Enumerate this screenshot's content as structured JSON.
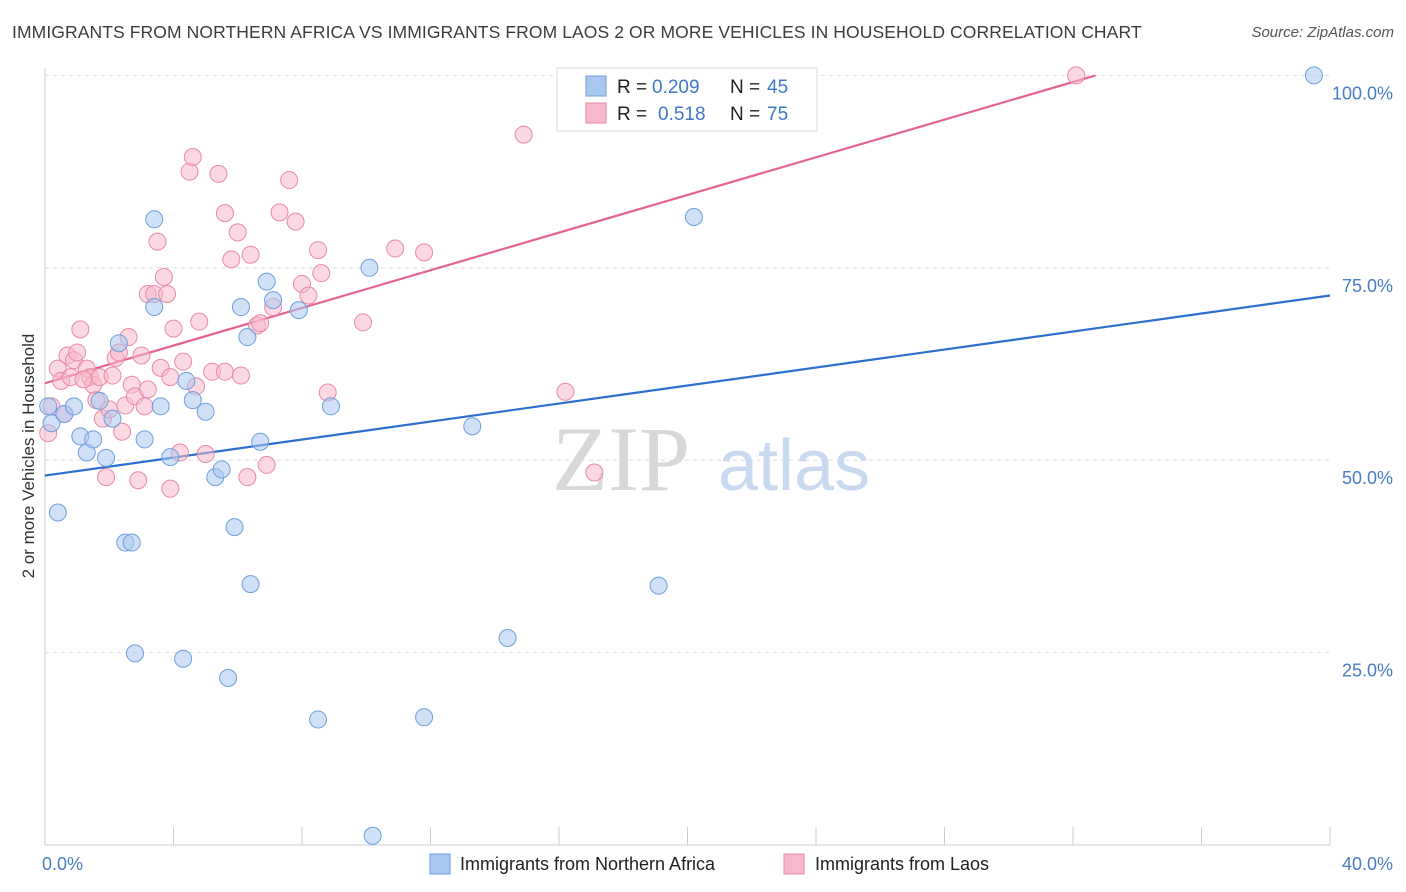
{
  "title": "IMMIGRANTS FROM NORTHERN AFRICA VS IMMIGRANTS FROM LAOS 2 OR MORE VEHICLES IN HOUSEHOLD CORRELATION CHART",
  "source": "Source: ZipAtlas.com",
  "watermark": {
    "zip": "ZIP",
    "atlas": "atlas"
  },
  "legend": {
    "rows": [
      {
        "r_label": "R =",
        "r_value": "0.209",
        "n_label": "N =",
        "n_value": "45"
      },
      {
        "r_label": "R =",
        "r_value": "0.518",
        "n_label": "N =",
        "n_value": "75"
      }
    ]
  },
  "colors": {
    "blue_fill": "#a9c8f0",
    "blue_stroke": "#6f9fde",
    "blue_line": "#2b6fcf",
    "pink_fill": "#f7b8cb",
    "pink_stroke": "#e98aa8",
    "pink_line": "#e4648e",
    "grid": "#dddddd",
    "axis_text": "#4a7cc4"
  },
  "chart_data": {
    "type": "scatter",
    "title": "IMMIGRANTS FROM NORTHERN AFRICA VS IMMIGRANTS FROM LAOS 2 OR MORE VEHICLES IN HOUSEHOLD CORRELATION CHART",
    "xlabel": "",
    "ylabel": "2 or more Vehicles in Household",
    "xlim": [
      0,
      40
    ],
    "ylim": [
      0,
      102
    ],
    "x_tick_labels": [
      "0.0%",
      "40.0%"
    ],
    "y_ticks": [
      25,
      50,
      75,
      100
    ],
    "y_tick_labels": [
      "25.0%",
      "50.0%",
      "75.0%",
      "100.0%"
    ],
    "grid": true,
    "legend_position": "top-center",
    "series": [
      {
        "name": "Immigrants from Northern Africa",
        "color": "blue",
        "r": 0.209,
        "n": 45,
        "trend": {
          "x": [
            0,
            40
          ],
          "y": [
            48,
            71.4
          ]
        },
        "points": [
          [
            0.2,
            54.8
          ],
          [
            0.4,
            43.2
          ],
          [
            0.6,
            56.0
          ],
          [
            0.9,
            57.0
          ],
          [
            1.1,
            53.1
          ],
          [
            1.3,
            51.0
          ],
          [
            1.5,
            52.7
          ],
          [
            1.7,
            57.7
          ],
          [
            1.9,
            50.3
          ],
          [
            2.1,
            55.4
          ],
          [
            2.3,
            65.2
          ],
          [
            2.5,
            39.3
          ],
          [
            2.7,
            39.3
          ],
          [
            2.8,
            24.9
          ],
          [
            3.1,
            52.7
          ],
          [
            3.4,
            69.9
          ],
          [
            3.4,
            81.3
          ],
          [
            3.6,
            57.0
          ],
          [
            3.9,
            50.4
          ],
          [
            4.3,
            24.2
          ],
          [
            4.4,
            60.3
          ],
          [
            4.6,
            57.8
          ],
          [
            5.0,
            56.3
          ],
          [
            5.3,
            47.8
          ],
          [
            5.5,
            48.8
          ],
          [
            5.7,
            21.7
          ],
          [
            5.9,
            41.3
          ],
          [
            6.1,
            69.9
          ],
          [
            6.3,
            66.0
          ],
          [
            6.4,
            33.9
          ],
          [
            6.7,
            52.4
          ],
          [
            6.9,
            73.2
          ],
          [
            7.1,
            70.8
          ],
          [
            7.9,
            69.5
          ],
          [
            8.5,
            16.3
          ],
          [
            8.9,
            57.0
          ],
          [
            10.1,
            75.0
          ],
          [
            10.2,
            1.2
          ],
          [
            11.8,
            16.6
          ],
          [
            13.3,
            54.4
          ],
          [
            14.4,
            26.9
          ],
          [
            19.1,
            33.7
          ],
          [
            20.2,
            81.6
          ],
          [
            39.5,
            100.0
          ],
          [
            0.1,
            57.0
          ]
        ]
      },
      {
        "name": "Immigrants from Laos",
        "color": "pink",
        "r": 0.518,
        "n": 75,
        "trend": {
          "x": [
            0,
            32.7
          ],
          "y": [
            60,
            100
          ]
        },
        "points": [
          [
            0.1,
            53.5
          ],
          [
            0.2,
            57.0
          ],
          [
            0.4,
            61.9
          ],
          [
            0.5,
            60.3
          ],
          [
            0.6,
            56.0
          ],
          [
            0.7,
            63.6
          ],
          [
            0.8,
            60.8
          ],
          [
            0.9,
            63.0
          ],
          [
            1.0,
            64.0
          ],
          [
            1.1,
            67.0
          ],
          [
            1.3,
            61.9
          ],
          [
            1.4,
            60.8
          ],
          [
            1.5,
            59.8
          ],
          [
            1.6,
            57.8
          ],
          [
            1.7,
            60.8
          ],
          [
            1.8,
            55.4
          ],
          [
            1.9,
            47.8
          ],
          [
            2.0,
            56.6
          ],
          [
            2.2,
            63.3
          ],
          [
            2.3,
            64.0
          ],
          [
            2.4,
            53.7
          ],
          [
            2.5,
            57.1
          ],
          [
            2.6,
            66.0
          ],
          [
            2.7,
            59.8
          ],
          [
            2.8,
            58.3
          ],
          [
            2.9,
            47.4
          ],
          [
            3.0,
            63.6
          ],
          [
            3.1,
            57.0
          ],
          [
            3.2,
            59.2
          ],
          [
            3.2,
            71.6
          ],
          [
            3.4,
            71.6
          ],
          [
            3.5,
            78.4
          ],
          [
            3.6,
            62.0
          ],
          [
            3.7,
            73.8
          ],
          [
            3.8,
            71.6
          ],
          [
            3.9,
            46.3
          ],
          [
            4.0,
            67.1
          ],
          [
            4.2,
            51.0
          ],
          [
            4.3,
            62.8
          ],
          [
            4.5,
            87.5
          ],
          [
            4.6,
            89.4
          ],
          [
            4.7,
            59.6
          ],
          [
            4.8,
            68.0
          ],
          [
            5.0,
            50.8
          ],
          [
            5.2,
            61.5
          ],
          [
            5.4,
            87.2
          ],
          [
            5.6,
            82.1
          ],
          [
            5.6,
            61.5
          ],
          [
            5.8,
            76.1
          ],
          [
            6.0,
            79.6
          ],
          [
            6.1,
            61.0
          ],
          [
            6.3,
            47.8
          ],
          [
            6.4,
            76.7
          ],
          [
            6.6,
            67.5
          ],
          [
            6.9,
            49.4
          ],
          [
            7.1,
            69.9
          ],
          [
            7.3,
            82.2
          ],
          [
            7.6,
            86.4
          ],
          [
            7.8,
            81.0
          ],
          [
            8.0,
            72.9
          ],
          [
            8.2,
            71.4
          ],
          [
            8.5,
            77.3
          ],
          [
            8.6,
            74.3
          ],
          [
            8.8,
            58.8
          ],
          [
            9.9,
            67.9
          ],
          [
            10.9,
            77.5
          ],
          [
            11.8,
            77.0
          ],
          [
            14.9,
            92.3
          ],
          [
            16.2,
            58.9
          ],
          [
            17.1,
            48.4
          ],
          [
            32.1,
            100.0
          ],
          [
            1.2,
            60.5
          ],
          [
            2.1,
            61.0
          ],
          [
            6.7,
            67.8
          ],
          [
            3.9,
            60.8
          ]
        ]
      }
    ]
  },
  "bottom_legend": [
    {
      "label": "Immigrants from Northern Africa",
      "color": "blue"
    },
    {
      "label": "Immigrants from Laos",
      "color": "pink"
    }
  ]
}
